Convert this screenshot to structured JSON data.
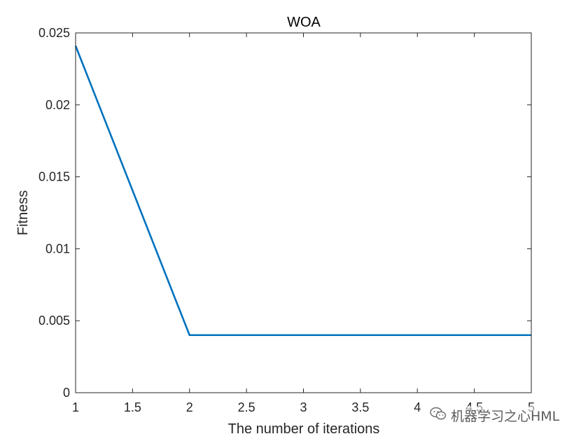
{
  "chart_data": {
    "type": "line",
    "title": "WOA",
    "xlabel": "The number of iterations",
    "ylabel": "Fitness",
    "xlim": [
      1,
      5
    ],
    "ylim": [
      0,
      0.025
    ],
    "xticks": [
      "1",
      "1.5",
      "2",
      "2.5",
      "3",
      "3.5",
      "4",
      "4.5",
      "5"
    ],
    "yticks": [
      "0",
      "0.005",
      "0.01",
      "0.015",
      "0.02",
      "0.025"
    ],
    "grid": false,
    "series": [
      {
        "color": "#0072BD",
        "x": [
          1,
          2,
          3,
          4,
          5
        ],
        "y": [
          0.0241,
          0.004,
          0.004,
          0.004,
          0.004
        ]
      }
    ]
  },
  "watermark": {
    "text": "机器学习之心HML",
    "icon": "wechat-icon"
  }
}
